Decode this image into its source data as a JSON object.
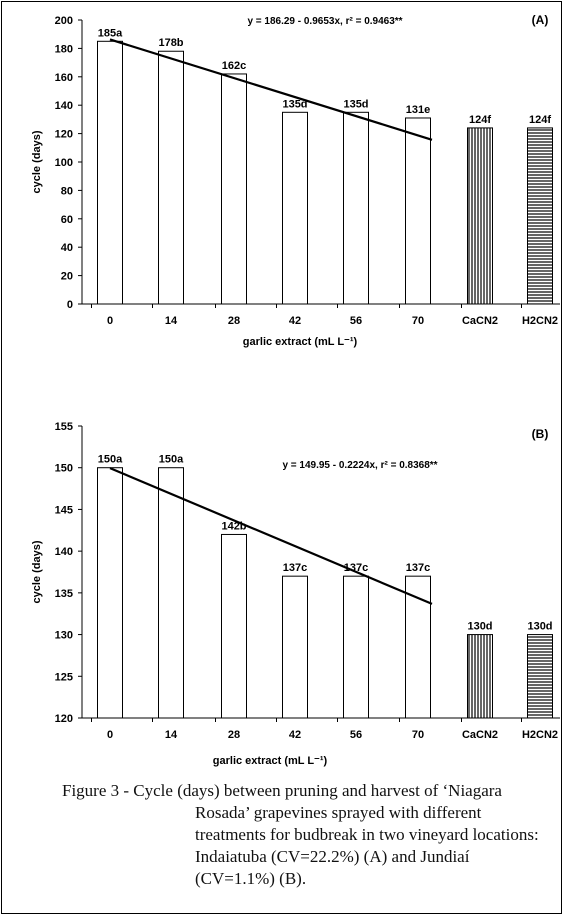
{
  "caption": {
    "text": "Figure 3 - Cycle (days) between pruning and harvest of ‘Niagara Rosada’ grapevines sprayed with different treatments for budbreak in two vineyard locations: Indaiatuba (CV=22.2%) (A) and Jundiaí (CV=1.1%) (B)."
  },
  "chart_data": [
    {
      "type": "bar",
      "panel_label": "(A)",
      "categories": [
        "0",
        "14",
        "28",
        "42",
        "56",
        "70",
        "CaCN2",
        "H2CN2"
      ],
      "values": [
        185,
        178,
        162,
        135,
        135,
        131,
        124,
        124
      ],
      "bar_labels": [
        "185a",
        "178b",
        "162c",
        "135d",
        "135d",
        "131e",
        "124f",
        "124f"
      ],
      "bar_fill": [
        "open",
        "open",
        "open",
        "open",
        "open",
        "open",
        "vertical-stripes",
        "horizontal-stripes"
      ],
      "xlabel": "garlic extract (mL L⁻¹)",
      "ylabel": "cycle (days)",
      "ylim": [
        0,
        200
      ],
      "yticks": [
        0,
        20,
        40,
        60,
        80,
        100,
        120,
        140,
        160,
        180,
        200
      ],
      "regression": {
        "equation": "y = 186.29 - 0.9653x, r² = 0.9463**",
        "intercept": 186.29,
        "slope": -0.9653,
        "x_range": [
          0,
          70
        ]
      }
    },
    {
      "type": "bar",
      "panel_label": "(B)",
      "categories": [
        "0",
        "14",
        "28",
        "42",
        "56",
        "70",
        "CaCN2",
        "H2CN2"
      ],
      "values": [
        150,
        150,
        142,
        137,
        137,
        137,
        130,
        130
      ],
      "bar_labels": [
        "150a",
        "150a",
        "142b",
        "137c",
        "137c",
        "137c",
        "130d",
        "130d"
      ],
      "bar_fill": [
        "open",
        "open",
        "open",
        "open",
        "open",
        "open",
        "vertical-stripes",
        "horizontal-stripes"
      ],
      "xlabel": "garlic extract (mL L⁻¹)",
      "ylabel": "cycle (days)",
      "ylim": [
        120,
        155
      ],
      "yticks": [
        120,
        125,
        130,
        135,
        140,
        145,
        150,
        155
      ],
      "regression": {
        "equation": "y = 149.95 - 0.2224x, r² = 0.8368**",
        "intercept": 149.95,
        "slope": -0.2224,
        "x_range": [
          0,
          70
        ]
      }
    }
  ]
}
